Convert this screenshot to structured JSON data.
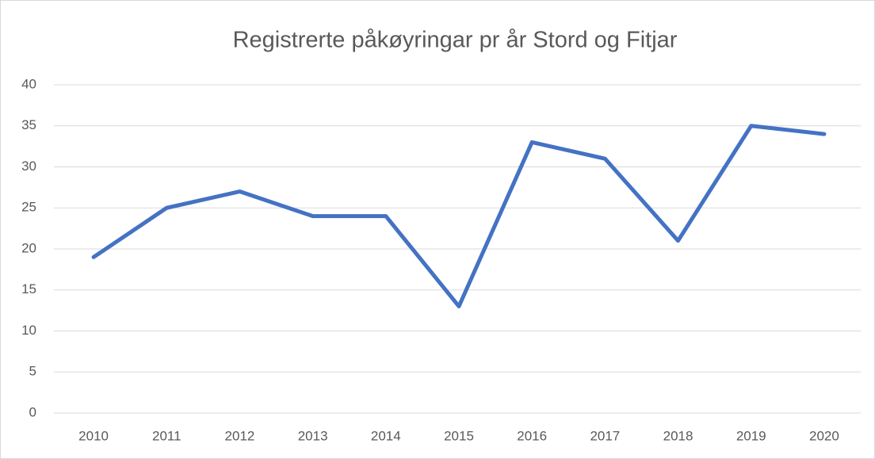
{
  "chart_data": {
    "type": "line",
    "title": "Registrerte påkøyringar pr år Stord og Fitjar",
    "categories": [
      "2010",
      "2011",
      "2012",
      "2013",
      "2014",
      "2015",
      "2016",
      "2017",
      "2018",
      "2019",
      "2020"
    ],
    "values": [
      19,
      25,
      27,
      24,
      24,
      13,
      33,
      31,
      21,
      35,
      34
    ],
    "color": "#4472c4",
    "ylim": [
      0,
      40
    ],
    "yticks": [
      0,
      5,
      10,
      15,
      20,
      25,
      30,
      35,
      40
    ],
    "grid": true
  }
}
